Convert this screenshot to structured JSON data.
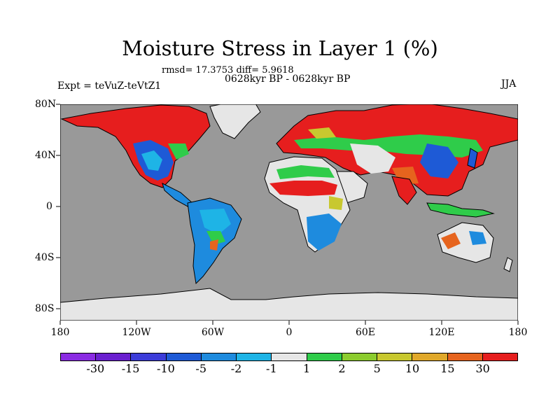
{
  "title": "Moisture Stress in Layer 1 (%)",
  "stats": "rmsd= 17.3753 diff= 5.9618",
  "period": "0628kyr BP - 0628kyr BP",
  "experiment": "Expt = teVuZ-teVtZ1",
  "season": "JJA",
  "y_ticks": [
    "80N",
    "40N",
    "0",
    "40S",
    "80S"
  ],
  "x_ticks": [
    "180",
    "120W",
    "60W",
    "0",
    "60E",
    "120E",
    "180"
  ],
  "colors": {
    "ocean": "#999999",
    "land_neutral": "#e6e6e6",
    "coast": "#000000"
  },
  "colorbar": {
    "colors": [
      "#8a2be2",
      "#6a1fcf",
      "#3c3cd9",
      "#1e5ad6",
      "#1e8bde",
      "#1eb4e6",
      "#e6e6e6",
      "#2fcc4a",
      "#8ccc2f",
      "#c8c82f",
      "#e0a82a",
      "#e6641e",
      "#e61e1e"
    ],
    "labels": [
      "-30",
      "-15",
      "-10",
      "-5",
      "-2",
      "-1",
      "1",
      "2",
      "5",
      "10",
      "15",
      "30"
    ]
  }
}
